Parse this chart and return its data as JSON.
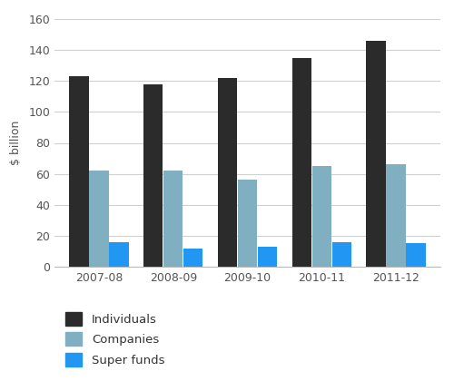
{
  "years": [
    "2007-08",
    "2008-09",
    "2009-10",
    "2010-11",
    "2011-12"
  ],
  "individuals": [
    123,
    118,
    122,
    135,
    146
  ],
  "companies": [
    62,
    62,
    56,
    65,
    66
  ],
  "super_funds": [
    16,
    12,
    13,
    16,
    15
  ],
  "bar_colors": {
    "individuals": "#2b2b2b",
    "companies": "#7fafc0",
    "super_funds": "#2196f3"
  },
  "ylabel": "$ billion",
  "ylim": [
    0,
    160
  ],
  "yticks": [
    0,
    20,
    40,
    60,
    80,
    100,
    120,
    140,
    160
  ],
  "legend_labels": [
    "Individuals",
    "Companies",
    "Super funds"
  ],
  "background_color": "#ffffff",
  "grid_color": "#d0d0d0"
}
